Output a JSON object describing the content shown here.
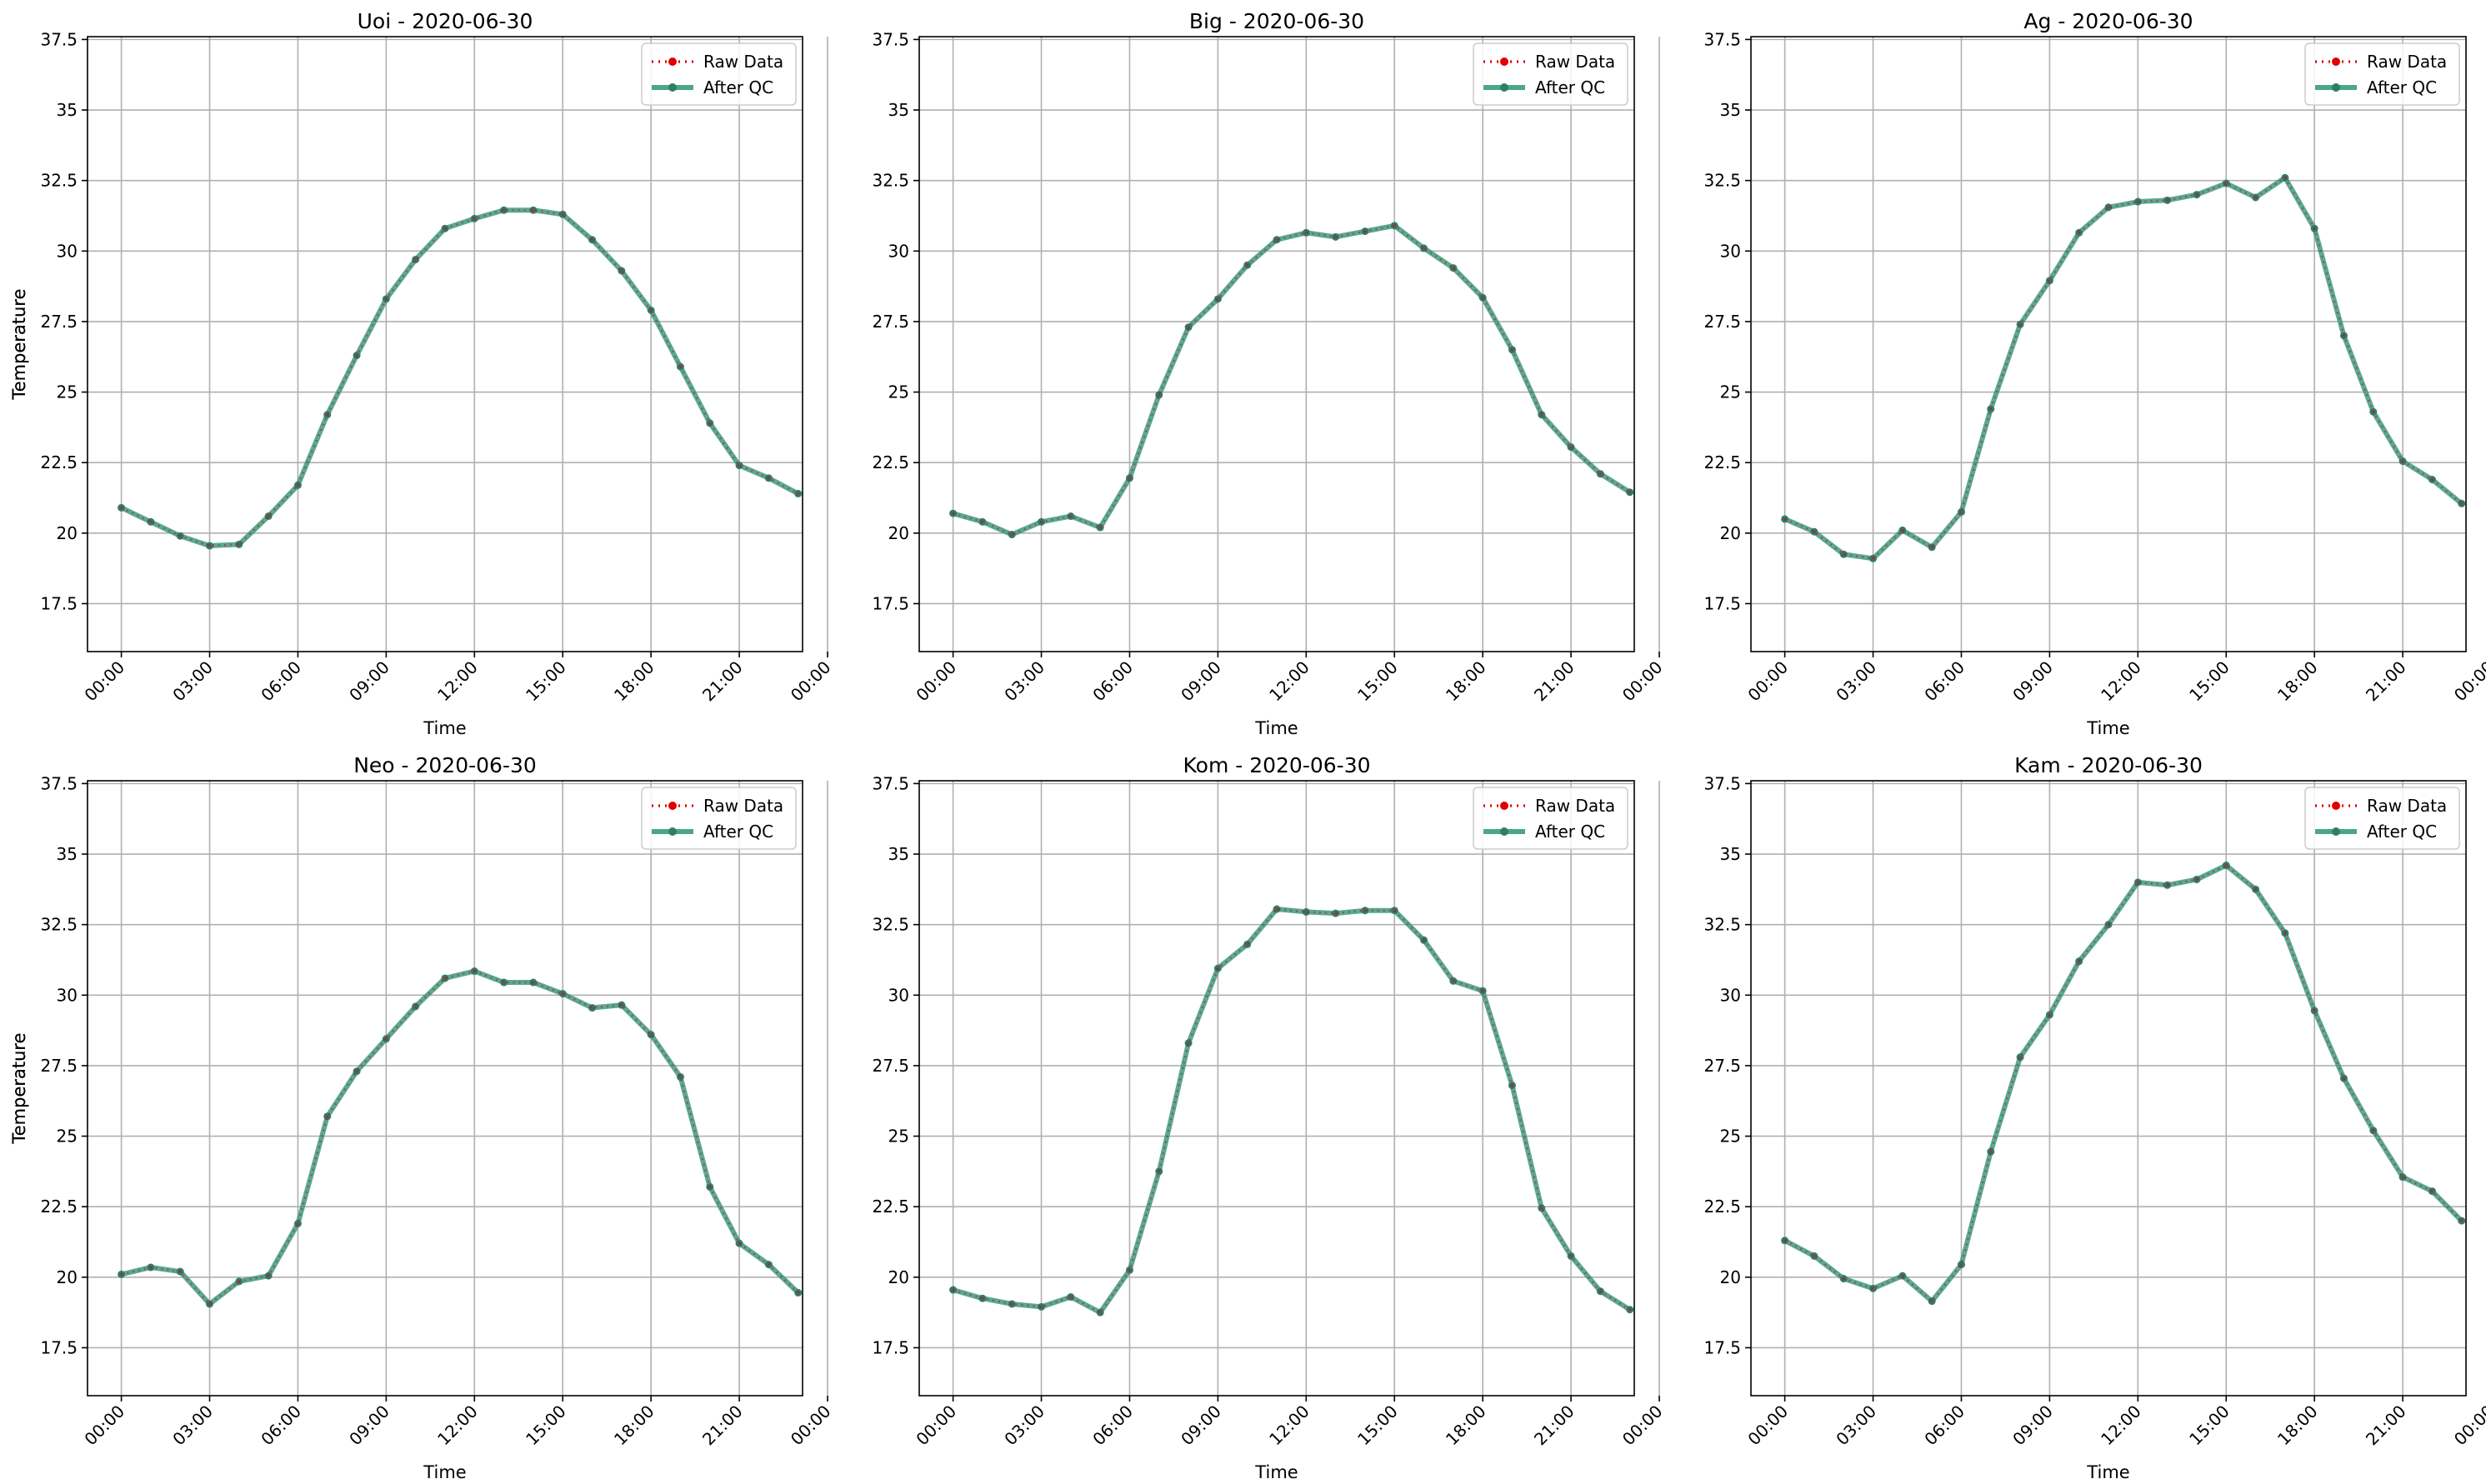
{
  "figure": {
    "shared": {
      "xlabel": "Time",
      "ylabel": "Temperature",
      "xticks": [
        "00:00",
        "03:00",
        "06:00",
        "09:00",
        "12:00",
        "15:00",
        "18:00",
        "21:00",
        "00:00"
      ],
      "yticks": [
        17.5,
        20.0,
        22.5,
        25.0,
        27.5,
        30.0,
        32.5,
        35.0,
        37.5
      ],
      "legend": [
        "Raw Data",
        "After QC"
      ]
    }
  },
  "chart_data": [
    {
      "type": "line",
      "title": "Uoi - 2020-06-30",
      "xlabel": "Time",
      "ylabel": "Temperature",
      "x_hours": [
        0,
        1,
        2,
        3,
        4,
        5,
        6,
        7,
        8,
        9,
        10,
        11,
        12,
        13,
        14,
        15,
        16,
        17,
        18,
        19,
        20,
        21,
        22,
        23
      ],
      "xlim_hours": [
        -1.15,
        23.15
      ],
      "ylim": [
        15.8,
        37.6
      ],
      "grid": true,
      "legend_position": "top-right",
      "series": [
        {
          "name": "Raw Data",
          "color": "#e00000",
          "style": "dotted",
          "values": [
            20.9,
            20.4,
            19.9,
            19.55,
            19.6,
            20.6,
            21.7,
            24.2,
            26.3,
            28.3,
            29.7,
            30.8,
            31.15,
            31.45,
            31.45,
            31.3,
            30.4,
            29.3,
            27.9,
            25.9,
            23.9,
            22.4,
            21.95,
            21.4
          ]
        },
        {
          "name": "After QC",
          "color": "#3a9c80",
          "style": "solid",
          "values": [
            20.9,
            20.4,
            19.9,
            19.55,
            19.6,
            20.6,
            21.7,
            24.2,
            26.3,
            28.3,
            29.7,
            30.8,
            31.15,
            31.45,
            31.45,
            31.3,
            30.4,
            29.3,
            27.9,
            25.9,
            23.9,
            22.4,
            21.95,
            21.4
          ]
        }
      ]
    },
    {
      "type": "line",
      "title": "Big - 2020-06-30",
      "xlabel": "Time",
      "ylabel": "Temperature",
      "x_hours": [
        0,
        1,
        2,
        3,
        4,
        5,
        6,
        7,
        8,
        9,
        10,
        11,
        12,
        13,
        14,
        15,
        16,
        17,
        18,
        19,
        20,
        21,
        22,
        23
      ],
      "xlim_hours": [
        -1.15,
        23.15
      ],
      "ylim": [
        15.8,
        37.6
      ],
      "grid": true,
      "legend_position": "top-right",
      "series": [
        {
          "name": "Raw Data",
          "color": "#e00000",
          "style": "dotted",
          "values": [
            20.7,
            20.4,
            19.95,
            20.4,
            20.6,
            20.2,
            21.95,
            24.9,
            27.3,
            28.3,
            29.5,
            30.4,
            30.65,
            30.5,
            30.7,
            30.9,
            30.1,
            29.4,
            28.35,
            26.5,
            24.2,
            23.05,
            22.1,
            21.45
          ]
        },
        {
          "name": "After QC",
          "color": "#3a9c80",
          "style": "solid",
          "values": [
            20.7,
            20.4,
            19.95,
            20.4,
            20.6,
            20.2,
            21.95,
            24.9,
            27.3,
            28.3,
            29.5,
            30.4,
            30.65,
            30.5,
            30.7,
            30.9,
            30.1,
            29.4,
            28.35,
            26.5,
            24.2,
            23.05,
            22.1,
            21.45
          ]
        }
      ]
    },
    {
      "type": "line",
      "title": "Ag - 2020-06-30",
      "xlabel": "Time",
      "ylabel": "Temperature",
      "x_hours": [
        0,
        1,
        2,
        3,
        4,
        5,
        6,
        7,
        8,
        9,
        10,
        11,
        12,
        13,
        14,
        15,
        16,
        17,
        18,
        19,
        20,
        21,
        22,
        23
      ],
      "xlim_hours": [
        -1.15,
        23.15
      ],
      "ylim": [
        15.8,
        37.6
      ],
      "grid": true,
      "legend_position": "top-right",
      "series": [
        {
          "name": "Raw Data",
          "color": "#e00000",
          "style": "dotted",
          "values": [
            20.5,
            20.05,
            19.25,
            19.1,
            20.1,
            19.5,
            20.75,
            24.4,
            27.4,
            28.95,
            30.65,
            31.55,
            31.75,
            31.8,
            32.0,
            32.4,
            31.9,
            32.6,
            30.8,
            27.0,
            24.3,
            22.55,
            21.9,
            21.05
          ]
        },
        {
          "name": "After QC",
          "color": "#3a9c80",
          "style": "solid",
          "values": [
            20.5,
            20.05,
            19.25,
            19.1,
            20.1,
            19.5,
            20.75,
            24.4,
            27.4,
            28.95,
            30.65,
            31.55,
            31.75,
            31.8,
            32.0,
            32.4,
            31.9,
            32.6,
            30.8,
            27.0,
            24.3,
            22.55,
            21.9,
            21.05
          ]
        }
      ]
    },
    {
      "type": "line",
      "title": "Neo - 2020-06-30",
      "xlabel": "Time",
      "ylabel": "Temperature",
      "x_hours": [
        0,
        1,
        2,
        3,
        4,
        5,
        6,
        7,
        8,
        9,
        10,
        11,
        12,
        13,
        14,
        15,
        16,
        17,
        18,
        19,
        20,
        21,
        22,
        23
      ],
      "xlim_hours": [
        -1.15,
        23.15
      ],
      "ylim": [
        15.8,
        37.6
      ],
      "grid": true,
      "legend_position": "top-right",
      "series": [
        {
          "name": "Raw Data",
          "color": "#e00000",
          "style": "dotted",
          "values": [
            20.1,
            20.35,
            20.2,
            19.05,
            19.85,
            20.05,
            21.9,
            25.7,
            27.3,
            28.45,
            29.6,
            30.6,
            30.85,
            30.45,
            30.45,
            30.05,
            29.55,
            29.65,
            28.6,
            27.1,
            23.2,
            21.2,
            20.45,
            19.45
          ]
        },
        {
          "name": "After QC",
          "color": "#3a9c80",
          "style": "solid",
          "values": [
            20.1,
            20.35,
            20.2,
            19.05,
            19.85,
            20.05,
            21.9,
            25.7,
            27.3,
            28.45,
            29.6,
            30.6,
            30.85,
            30.45,
            30.45,
            30.05,
            29.55,
            29.65,
            28.6,
            27.1,
            23.2,
            21.2,
            20.45,
            19.45
          ]
        }
      ]
    },
    {
      "type": "line",
      "title": "Kom - 2020-06-30",
      "xlabel": "Time",
      "ylabel": "Temperature",
      "x_hours": [
        0,
        1,
        2,
        3,
        4,
        5,
        6,
        7,
        8,
        9,
        10,
        11,
        12,
        13,
        14,
        15,
        16,
        17,
        18,
        19,
        20,
        21,
        22,
        23
      ],
      "xlim_hours": [
        -1.15,
        23.15
      ],
      "ylim": [
        15.8,
        37.6
      ],
      "grid": true,
      "legend_position": "top-right",
      "series": [
        {
          "name": "Raw Data",
          "color": "#e00000",
          "style": "dotted",
          "values": [
            19.55,
            19.25,
            19.05,
            18.95,
            19.3,
            18.75,
            20.25,
            23.75,
            28.3,
            30.95,
            31.8,
            33.05,
            32.95,
            32.9,
            33.0,
            33.0,
            31.95,
            30.5,
            30.15,
            26.8,
            22.45,
            20.75,
            19.5,
            18.85
          ]
        },
        {
          "name": "After QC",
          "color": "#3a9c80",
          "style": "solid",
          "values": [
            19.55,
            19.25,
            19.05,
            18.95,
            19.3,
            18.75,
            20.25,
            23.75,
            28.3,
            30.95,
            31.8,
            33.05,
            32.95,
            32.9,
            33.0,
            33.0,
            31.95,
            30.5,
            30.15,
            26.8,
            22.45,
            20.75,
            19.5,
            18.85
          ]
        }
      ]
    },
    {
      "type": "line",
      "title": "Kam - 2020-06-30",
      "xlabel": "Time",
      "ylabel": "Temperature",
      "x_hours": [
        0,
        1,
        2,
        3,
        4,
        5,
        6,
        7,
        8,
        9,
        10,
        11,
        12,
        13,
        14,
        15,
        16,
        17,
        18,
        19,
        20,
        21,
        22,
        23
      ],
      "xlim_hours": [
        -1.15,
        23.15
      ],
      "ylim": [
        15.8,
        37.6
      ],
      "grid": true,
      "legend_position": "top-right",
      "series": [
        {
          "name": "Raw Data",
          "color": "#e00000",
          "style": "dotted",
          "values": [
            21.3,
            20.75,
            19.95,
            19.6,
            20.05,
            19.15,
            20.45,
            24.45,
            27.8,
            29.3,
            31.2,
            32.5,
            34.0,
            33.9,
            34.1,
            34.6,
            33.75,
            32.2,
            29.45,
            27.05,
            25.2,
            23.55,
            23.05,
            22.0
          ]
        },
        {
          "name": "After QC",
          "color": "#3a9c80",
          "style": "solid",
          "values": [
            21.3,
            20.75,
            19.95,
            19.6,
            20.05,
            19.15,
            20.45,
            24.45,
            27.8,
            29.3,
            31.2,
            32.5,
            34.0,
            33.9,
            34.1,
            34.6,
            33.75,
            32.2,
            29.45,
            27.05,
            25.2,
            23.55,
            23.05,
            22.0
          ]
        }
      ]
    }
  ]
}
